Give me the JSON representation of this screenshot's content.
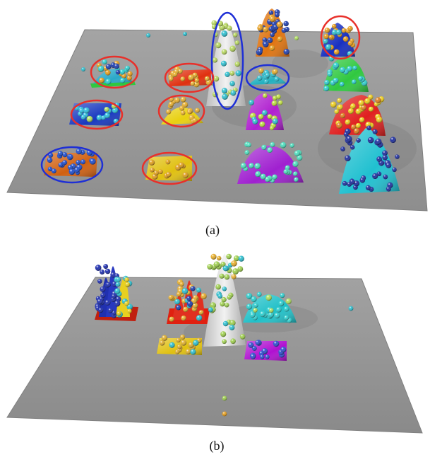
{
  "figure": {
    "panels": [
      {
        "id": "a",
        "caption": "(a)"
      },
      {
        "id": "b",
        "caption": "(b)"
      }
    ]
  },
  "colors": {
    "plane": "#9a9a9a",
    "plane_edge": "#7c7c7c",
    "highlight_red": "#e8302a",
    "highlight_blue": "#1e2fd6",
    "background": "#ffffff"
  },
  "panel_a": {
    "mounds": [
      {
        "name": "orange-peak",
        "base": "#e07010",
        "sphere": "#2040b0",
        "shape": "peak"
      },
      {
        "name": "white-spike",
        "base": "#d8d8d8",
        "sphere": "#b0d060",
        "shape": "spike",
        "highlight": "blue"
      },
      {
        "name": "blue-peak",
        "base": "#1830c0",
        "sphere": "#e8a020",
        "shape": "peak",
        "highlight": "red"
      },
      {
        "name": "multicolor-dome",
        "base": "#30c8c0",
        "sphere": "#e8a020",
        "shape": "dome",
        "highlight": "red"
      },
      {
        "name": "red-flat",
        "base": "#e03010",
        "sphere": "#e8b030",
        "shape": "flat",
        "highlight": "red"
      },
      {
        "name": "cyan-flat",
        "base": "#20b0c0",
        "sphere": "#30c0d0",
        "shape": "flat",
        "highlight": "blue"
      },
      {
        "name": "green-dome",
        "base": "#30c840",
        "sphere": "#30d0d0",
        "shape": "dome"
      },
      {
        "name": "blue-flat",
        "base": "#1838c0",
        "sphere": "#30c0e0",
        "shape": "flat",
        "highlight": "red"
      },
      {
        "name": "yellow-dome",
        "base": "#e8d010",
        "sphere": "#e8b030",
        "shape": "dome",
        "highlight": "red"
      },
      {
        "name": "purple-dome",
        "base": "#b020d0",
        "sphere": "#c0e040",
        "shape": "dome"
      },
      {
        "name": "red-yellow-dome",
        "base": "#e02020",
        "sphere": "#f0d020",
        "shape": "dome"
      },
      {
        "name": "orange-flat",
        "base": "#d06010",
        "sphere": "#2050d0",
        "shape": "flat",
        "highlight": "blue"
      },
      {
        "name": "yellow-flat",
        "base": "#e0c010",
        "sphere": "#e0a020",
        "shape": "flat",
        "highlight": "red"
      },
      {
        "name": "purple-mound",
        "base": "#a020d0",
        "sphere": "#50e0c0",
        "shape": "dome"
      },
      {
        "name": "cyan-peak",
        "base": "#20c0d0",
        "sphere": "#2030a0",
        "shape": "peak"
      }
    ]
  },
  "panel_b": {
    "mounds": [
      {
        "name": "blue-spikes",
        "base": "#c02010",
        "sphere": "#2030b0",
        "shape": "spikes"
      },
      {
        "name": "red-multispike",
        "base": "#e02010",
        "sphere": "#e8b030",
        "shape": "spikes"
      },
      {
        "name": "white-spike",
        "base": "#d0d0d0",
        "sphere": "#a0d050",
        "shape": "spike"
      },
      {
        "name": "cyan-dome",
        "base": "#20c0c8",
        "sphere": "#30d0d0",
        "shape": "dome"
      },
      {
        "name": "yellow-flat",
        "base": "#e0c010",
        "sphere": "#e0b030",
        "shape": "flat"
      },
      {
        "name": "purple-flat",
        "base": "#b010d0",
        "sphere": "#3050d0",
        "shape": "flat"
      }
    ]
  }
}
